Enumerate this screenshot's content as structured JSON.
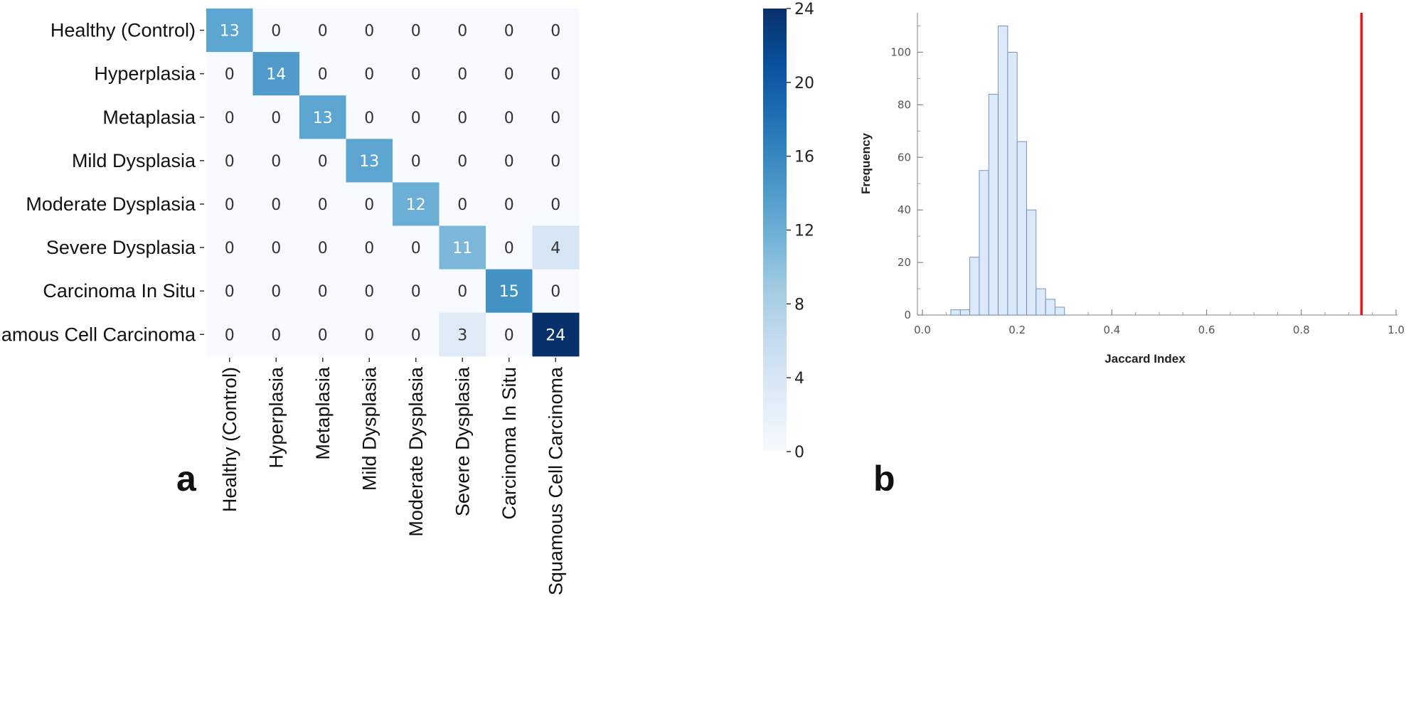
{
  "panel_a_label": "a",
  "panel_b_label": "b",
  "chart_data": [
    {
      "type": "heatmap",
      "row_labels": [
        "Healthy (Control)",
        "Hyperplasia",
        "Metaplasia",
        "Mild Dysplasia",
        "Moderate Dysplasia",
        "Severe Dysplasia",
        "Carcinoma In Situ",
        "Squamous Cell Carcinoma"
      ],
      "col_labels": [
        "Healthy (Control)",
        "Hyperplasia",
        "Metaplasia",
        "Mild Dysplasia",
        "Moderate Dysplasia",
        "Severe Dysplasia",
        "Carcinoma In Situ",
        "Squamous Cell Carcinoma"
      ],
      "values": [
        [
          13,
          0,
          0,
          0,
          0,
          0,
          0,
          0
        ],
        [
          0,
          14,
          0,
          0,
          0,
          0,
          0,
          0
        ],
        [
          0,
          0,
          13,
          0,
          0,
          0,
          0,
          0
        ],
        [
          0,
          0,
          0,
          13,
          0,
          0,
          0,
          0
        ],
        [
          0,
          0,
          0,
          0,
          12,
          0,
          0,
          0
        ],
        [
          0,
          0,
          0,
          0,
          0,
          11,
          0,
          4
        ],
        [
          0,
          0,
          0,
          0,
          0,
          0,
          15,
          0
        ],
        [
          0,
          0,
          0,
          0,
          0,
          3,
          0,
          24
        ]
      ],
      "colorbar": {
        "min": 0,
        "max": 24,
        "ticks": [
          0,
          4,
          8,
          12,
          16,
          20,
          24
        ],
        "colormap": "Blues"
      }
    },
    {
      "type": "bar",
      "subtype": "histogram",
      "xlabel": "Jaccard Index",
      "ylabel": "Frequency",
      "xlim": [
        0.0,
        1.0
      ],
      "ylim": [
        0,
        115
      ],
      "x_ticks": [
        "0.0",
        "0.2",
        "0.4",
        "0.6",
        "0.8",
        "1.0"
      ],
      "y_ticks": [
        "0",
        "20",
        "40",
        "60",
        "80",
        "100"
      ],
      "bin_width": 0.02,
      "bins": [
        {
          "x0": 0.06,
          "count": 2
        },
        {
          "x0": 0.08,
          "count": 2
        },
        {
          "x0": 0.1,
          "count": 22
        },
        {
          "x0": 0.12,
          "count": 55
        },
        {
          "x0": 0.14,
          "count": 84
        },
        {
          "x0": 0.16,
          "count": 110
        },
        {
          "x0": 0.18,
          "count": 100
        },
        {
          "x0": 0.2,
          "count": 66
        },
        {
          "x0": 0.22,
          "count": 40
        },
        {
          "x0": 0.24,
          "count": 10
        },
        {
          "x0": 0.26,
          "count": 6
        },
        {
          "x0": 0.28,
          "count": 3
        }
      ],
      "bar_fill": "#dbe9f9",
      "bar_stroke": "#6b8bb3",
      "reference_line": {
        "x": 0.927,
        "color": "#e8141b"
      }
    }
  ]
}
